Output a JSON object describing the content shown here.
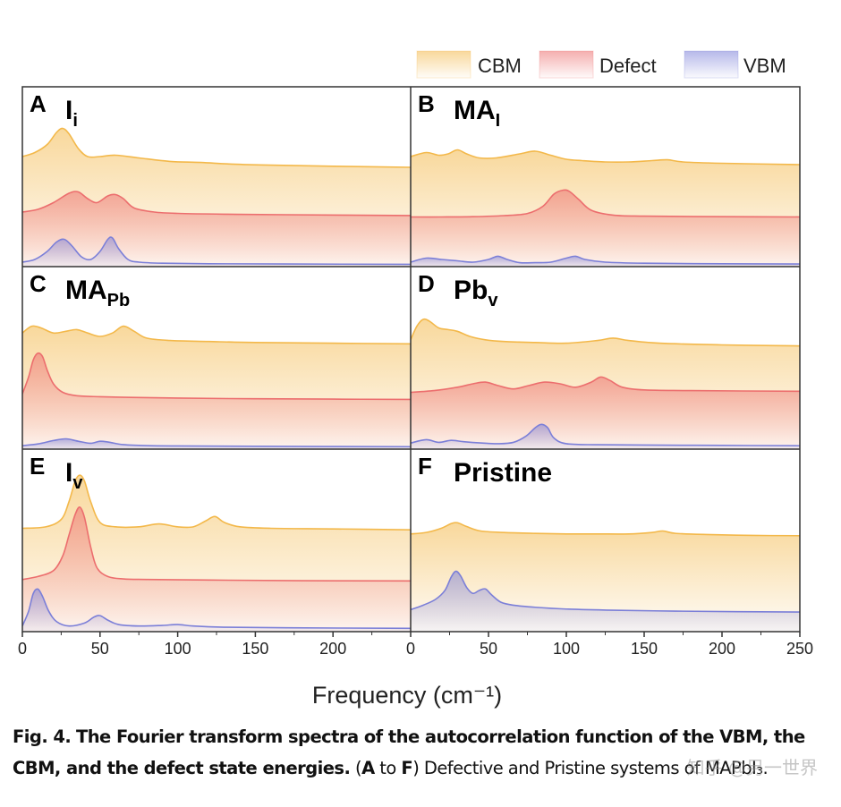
{
  "chart_data": {
    "type": "area",
    "xlabel": "Frequency (cm⁻¹)",
    "xlim": [
      0,
      250
    ],
    "xticks_left": [
      "0",
      "50",
      "100",
      "150",
      "200"
    ],
    "xticks_right": [
      "0",
      "50",
      "100",
      "150",
      "200",
      "250"
    ],
    "legend": [
      {
        "name": "CBM",
        "color": "#f3b84a"
      },
      {
        "name": "Defect",
        "color": "#ec6e6e"
      },
      {
        "name": "VBM",
        "color": "#7b7fd8"
      }
    ],
    "panels": [
      {
        "letter": "A",
        "label_main": "I",
        "label_sub": "i",
        "series": {
          "CBM": {
            "x": [
              0,
              8,
              16,
              22,
              26,
              30,
              36,
              42,
              50,
              60,
              75,
              95,
              115,
              135,
              160,
              200,
              250
            ],
            "y": [
              0.5,
              0.65,
              0.95,
              1.4,
              1.55,
              1.35,
              0.8,
              0.5,
              0.5,
              0.55,
              0.45,
              0.32,
              0.28,
              0.22,
              0.18,
              0.14,
              0.1
            ]
          },
          "Defect": {
            "x": [
              0,
              10,
              20,
              30,
              36,
              42,
              48,
              55,
              60,
              65,
              72,
              85,
              100,
              130,
              170,
              250
            ],
            "y": [
              0.2,
              0.3,
              0.55,
              0.9,
              0.95,
              0.7,
              0.55,
              0.8,
              0.85,
              0.7,
              0.35,
              0.2,
              0.15,
              0.12,
              0.1,
              0.07
            ]
          },
          "VBM": {
            "x": [
              0,
              8,
              16,
              22,
              27,
              32,
              38,
              44,
              50,
              55,
              58,
              62,
              68,
              75,
              90,
              120,
              170,
              250
            ],
            "y": [
              0.1,
              0.2,
              0.5,
              0.85,
              0.95,
              0.7,
              0.3,
              0.2,
              0.5,
              0.95,
              1.0,
              0.6,
              0.2,
              0.1,
              0.06,
              0.04,
              0.03,
              0.02
            ]
          }
        }
      },
      {
        "letter": "B",
        "label_main": "MA",
        "label_sub": "I",
        "series": {
          "CBM": {
            "x": [
              0,
              10,
              18,
              24,
              30,
              36,
              44,
              55,
              70,
              80,
              90,
              100,
              110,
              125,
              140,
              155,
              165,
              175,
              200,
              250
            ],
            "y": [
              0.5,
              0.65,
              0.55,
              0.6,
              0.75,
              0.6,
              0.45,
              0.45,
              0.6,
              0.7,
              0.55,
              0.4,
              0.35,
              0.3,
              0.3,
              0.35,
              0.38,
              0.3,
              0.25,
              0.2
            ]
          },
          "Defect": {
            "x": [
              0,
              20,
              40,
              60,
              75,
              85,
              92,
              98,
              102,
              108,
              116,
              130,
              150,
              200,
              250
            ],
            "y": [
              0.05,
              0.05,
              0.06,
              0.1,
              0.18,
              0.45,
              0.9,
              1.05,
              1.0,
              0.7,
              0.3,
              0.12,
              0.08,
              0.06,
              0.05
            ]
          },
          "VBM": {
            "x": [
              0,
              10,
              20,
              30,
              40,
              50,
              56,
              62,
              70,
              80,
              90,
              100,
              106,
              112,
              125,
              150,
              200,
              250
            ],
            "y": [
              0.1,
              0.25,
              0.2,
              0.15,
              0.1,
              0.2,
              0.32,
              0.2,
              0.08,
              0.08,
              0.1,
              0.25,
              0.32,
              0.2,
              0.1,
              0.06,
              0.04,
              0.03
            ]
          }
        }
      },
      {
        "letter": "C",
        "label_main": "MA",
        "label_sub": "Pb",
        "series": {
          "CBM": {
            "x": [
              0,
              6,
              12,
              20,
              28,
              35,
              42,
              50,
              58,
              65,
              72,
              80,
              95,
              120,
              150,
              200,
              250
            ],
            "y": [
              0.6,
              0.8,
              0.75,
              0.6,
              0.65,
              0.7,
              0.6,
              0.5,
              0.6,
              0.8,
              0.65,
              0.45,
              0.38,
              0.35,
              0.32,
              0.3,
              0.28
            ]
          },
          "Defect": {
            "x": [
              0,
              4,
              7,
              10,
              13,
              16,
              20,
              26,
              35,
              50,
              70,
              100,
              150,
              200,
              250
            ],
            "y": [
              0.2,
              0.7,
              1.2,
              1.4,
              1.3,
              0.9,
              0.5,
              0.25,
              0.15,
              0.12,
              0.1,
              0.08,
              0.06,
              0.05,
              0.04
            ]
          },
          "VBM": {
            "x": [
              0,
              10,
              20,
              28,
              36,
              44,
              50,
              56,
              65,
              80,
              100,
              150,
              250
            ],
            "y": [
              0.05,
              0.1,
              0.2,
              0.25,
              0.18,
              0.12,
              0.18,
              0.15,
              0.08,
              0.05,
              0.04,
              0.03,
              0.02
            ]
          }
        }
      },
      {
        "letter": "D",
        "label_main": "Pb",
        "label_sub": "v",
        "series": {
          "CBM": {
            "x": [
              0,
              4,
              8,
              12,
              18,
              24,
              30,
              38,
              48,
              60,
              80,
              100,
              120,
              130,
              140,
              160,
              200,
              250
            ],
            "y": [
              0.4,
              0.8,
              1.0,
              0.95,
              0.75,
              0.7,
              0.65,
              0.5,
              0.4,
              0.35,
              0.32,
              0.3,
              0.38,
              0.45,
              0.38,
              0.3,
              0.25,
              0.22
            ]
          },
          "Defect": {
            "x": [
              0,
              15,
              30,
              40,
              48,
              56,
              66,
              76,
              86,
              96,
              106,
              116,
              122,
              128,
              136,
              150,
              180,
              250
            ],
            "y": [
              0.25,
              0.3,
              0.4,
              0.5,
              0.55,
              0.45,
              0.35,
              0.45,
              0.55,
              0.5,
              0.4,
              0.55,
              0.7,
              0.6,
              0.4,
              0.32,
              0.3,
              0.28
            ]
          },
          "VBM": {
            "x": [
              0,
              10,
              18,
              26,
              34,
              46,
              56,
              66,
              74,
              80,
              84,
              88,
              92,
              100,
              120,
              150,
              200,
              250
            ],
            "y": [
              0.1,
              0.2,
              0.12,
              0.18,
              0.14,
              0.1,
              0.08,
              0.12,
              0.3,
              0.55,
              0.65,
              0.55,
              0.25,
              0.08,
              0.05,
              0.04,
              0.03,
              0.02
            ]
          }
        }
      },
      {
        "letter": "E",
        "label_main": "I",
        "label_sub": "v",
        "series": {
          "CBM": {
            "x": [
              0,
              15,
              25,
              30,
              34,
              37,
              40,
              44,
              50,
              60,
              75,
              88,
              100,
              110,
              118,
              124,
              130,
              140,
              160,
              200,
              250
            ],
            "y": [
              0.5,
              0.55,
              0.8,
              1.4,
              2.1,
              2.3,
              2.1,
              1.4,
              0.7,
              0.55,
              0.55,
              0.65,
              0.55,
              0.55,
              0.75,
              0.9,
              0.7,
              0.55,
              0.5,
              0.48,
              0.45
            ]
          },
          "Defect": {
            "x": [
              0,
              10,
              20,
              26,
              30,
              34,
              37,
              40,
              44,
              48,
              55,
              65,
              80,
              120,
              180,
              250
            ],
            "y": [
              0.1,
              0.2,
              0.4,
              0.9,
              1.6,
              2.3,
              2.55,
              2.2,
              1.2,
              0.5,
              0.2,
              0.12,
              0.1,
              0.08,
              0.06,
              0.05
            ]
          },
          "VBM": {
            "x": [
              0,
              4,
              7,
              10,
              13,
              17,
              22,
              30,
              40,
              46,
              50,
              55,
              62,
              75,
              90,
              100,
              110,
              130,
              170,
              250
            ],
            "y": [
              0.1,
              0.6,
              1.2,
              1.35,
              1.1,
              0.6,
              0.25,
              0.1,
              0.2,
              0.4,
              0.45,
              0.3,
              0.15,
              0.1,
              0.12,
              0.15,
              0.1,
              0.06,
              0.04,
              0.02
            ]
          }
        }
      },
      {
        "letter": "F",
        "label_main": "Pristine",
        "label_sub": "",
        "series": {
          "CBM": {
            "x": [
              0,
              10,
              20,
              26,
              30,
              36,
              45,
              60,
              80,
              100,
              120,
              140,
              155,
              162,
              170,
              190,
              220,
              250
            ],
            "y": [
              0.4,
              0.45,
              0.6,
              0.75,
              0.78,
              0.65,
              0.5,
              0.45,
              0.42,
              0.4,
              0.4,
              0.4,
              0.45,
              0.5,
              0.42,
              0.38,
              0.35,
              0.34
            ]
          },
          "Defect": {
            "x": [],
            "y": []
          },
          "VBM": {
            "x": [
              0,
              8,
              16,
              22,
              26,
              29,
              32,
              36,
              40,
              44,
              48,
              52,
              58,
              66,
              80,
              100,
              130,
              170,
              210,
              250
            ],
            "y": [
              0.2,
              0.35,
              0.55,
              0.85,
              1.3,
              1.5,
              1.35,
              0.95,
              0.75,
              0.85,
              0.9,
              0.7,
              0.45,
              0.35,
              0.28,
              0.22,
              0.18,
              0.15,
              0.13,
              0.12
            ]
          }
        }
      }
    ]
  },
  "caption": {
    "fig_label": "Fig. 4.",
    "title": "The Fourier transform spectra of the autocorrelation function of the VBM, the CBM, and the defect state energies.",
    "open_paren": "(",
    "range_start": "A",
    "range_to": " to ",
    "range_end": "F",
    "body": ") Defective and Pristine systems of MAPbI₃."
  },
  "watermark": "知乎 @另一世界"
}
